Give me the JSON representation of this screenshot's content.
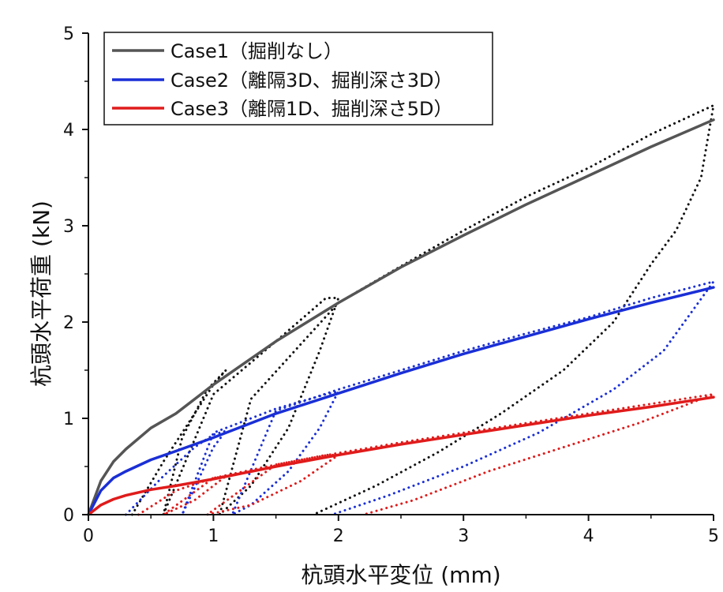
{
  "chart_data": {
    "type": "line",
    "xlabel": "杭頭水平変位 (mm)",
    "ylabel": "杭頭水平荷重 (kN)",
    "xlim": [
      0,
      5
    ],
    "ylim": [
      0,
      5
    ],
    "x_ticks": [
      "0",
      "1",
      "2",
      "3",
      "4",
      "5"
    ],
    "y_ticks": [
      "0",
      "1",
      "2",
      "3",
      "4",
      "5"
    ],
    "grid": false,
    "legend_position": "top-left",
    "series": [
      {
        "name": "Case1（掘削なし）",
        "color": "#555555",
        "style": "solid",
        "x": [
          0,
          0.1,
          0.2,
          0.3,
          0.5,
          0.7,
          1.0,
          1.5,
          2.0,
          2.5,
          3.0,
          3.5,
          4.0,
          4.5,
          5.0
        ],
        "y": [
          0,
          0.35,
          0.55,
          0.68,
          0.9,
          1.05,
          1.35,
          1.8,
          2.2,
          2.57,
          2.9,
          3.22,
          3.52,
          3.82,
          4.1
        ]
      },
      {
        "name": "Case2（離隔3D、掘削深さ3D）",
        "color": "#1a2fd6",
        "style": "solid",
        "x": [
          0,
          0.1,
          0.2,
          0.3,
          0.5,
          0.7,
          1.0,
          1.5,
          2.0,
          2.5,
          3.0,
          3.5,
          4.0,
          4.5,
          5.0
        ],
        "y": [
          0,
          0.25,
          0.38,
          0.45,
          0.57,
          0.66,
          0.8,
          1.05,
          1.26,
          1.47,
          1.67,
          1.85,
          2.03,
          2.2,
          2.36
        ]
      },
      {
        "name": "Case3（離隔1D、掘削深さ5D）",
        "color": "#e01b1b",
        "style": "solid",
        "x": [
          0,
          0.1,
          0.2,
          0.3,
          0.5,
          0.7,
          1.0,
          1.5,
          2.0,
          2.5,
          3.0,
          3.5,
          4.0,
          4.5,
          5.0
        ],
        "y": [
          0,
          0.1,
          0.16,
          0.2,
          0.26,
          0.3,
          0.37,
          0.5,
          0.62,
          0.73,
          0.83,
          0.93,
          1.03,
          1.12,
          1.22
        ]
      },
      {
        "color": "#111111",
        "style": "dotted",
        "x": [
          0.35,
          0.6,
          0.85,
          1.0,
          1.1,
          0.95,
          0.75,
          0.6,
          1.0,
          1.5,
          1.9,
          2.0,
          1.85,
          1.6,
          1.3,
          1.05,
          1.3,
          2.0,
          2.5,
          3.0,
          3.5,
          4.0,
          4.5,
          5.0,
          4.9,
          4.7,
          4.5,
          4.2,
          3.8,
          3.3,
          2.8,
          2.3,
          1.8
        ],
        "y": [
          0,
          0.55,
          1.05,
          1.35,
          1.5,
          1.3,
          0.8,
          0,
          1.25,
          1.8,
          2.25,
          2.25,
          1.7,
          0.9,
          0.3,
          0,
          1.2,
          2.2,
          2.58,
          2.95,
          3.3,
          3.6,
          3.95,
          4.25,
          3.5,
          2.95,
          2.6,
          2.0,
          1.5,
          1.05,
          0.65,
          0.3,
          0
        ]
      },
      {
        "color": "#1a2fd6",
        "style": "dotted",
        "x": [
          0.3,
          0.6,
          0.85,
          1.0,
          1.1,
          1.0,
          0.75,
          1.0,
          1.5,
          1.9,
          2.0,
          1.85,
          1.6,
          1.3,
          1.15,
          1.5,
          2.0,
          2.5,
          3.0,
          3.5,
          4.0,
          4.5,
          5.0,
          4.6,
          4.2,
          3.6,
          3.0,
          2.4,
          1.95
        ],
        "y": [
          0,
          0.4,
          0.7,
          0.83,
          0.87,
          0.7,
          0,
          0.85,
          1.1,
          1.25,
          1.28,
          0.9,
          0.45,
          0.1,
          0,
          1.08,
          1.3,
          1.5,
          1.7,
          1.88,
          2.05,
          2.25,
          2.42,
          1.7,
          1.3,
          0.85,
          0.5,
          0.2,
          0
        ]
      },
      {
        "color": "#e01b1b",
        "style": "dotted",
        "x": [
          0.4,
          0.7,
          1.0,
          1.1,
          1.0,
          0.85,
          0.6,
          1.0,
          1.5,
          1.9,
          2.0,
          1.7,
          1.3,
          0.95,
          1.5,
          2.0,
          2.5,
          3.0,
          3.5,
          4.0,
          4.5,
          5.0,
          4.4,
          3.8,
          3.2,
          2.6,
          2.2
        ],
        "y": [
          0,
          0.25,
          0.38,
          0.4,
          0.3,
          0.15,
          0,
          0.38,
          0.52,
          0.62,
          0.62,
          0.35,
          0.1,
          0,
          0.52,
          0.64,
          0.75,
          0.85,
          0.95,
          1.05,
          1.15,
          1.25,
          0.95,
          0.7,
          0.45,
          0.15,
          0
        ]
      }
    ]
  }
}
